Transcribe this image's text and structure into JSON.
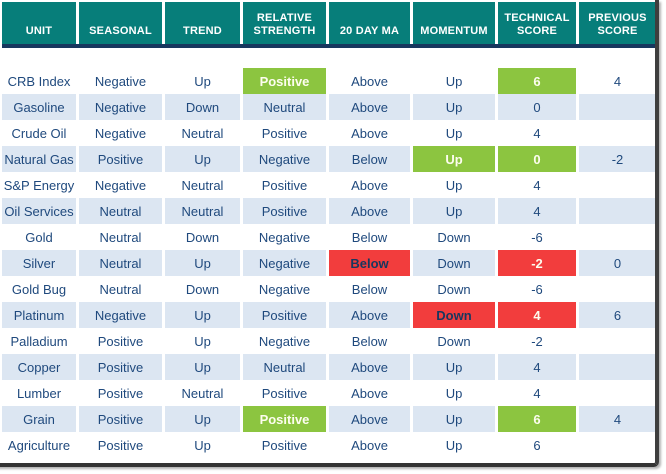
{
  "colors": {
    "header_bg": "#077E7A",
    "header_text": "#FFFFFF",
    "body_text": "#1F497D",
    "stripe_blue": "#DCE6F2",
    "highlight_green": "#8CC540",
    "highlight_red": "#F23D3D",
    "header_border_navy": "#17375E",
    "frame_gray": "#3E3E3E"
  },
  "table": {
    "columns": [
      {
        "key": "unit",
        "label": "UNIT"
      },
      {
        "key": "seasonal",
        "label": "SEASONAL"
      },
      {
        "key": "trend",
        "label": "TREND"
      },
      {
        "key": "relative_strength",
        "label": "RELATIVE STRENGTH"
      },
      {
        "key": "ma20",
        "label": "20 DAY MA"
      },
      {
        "key": "momentum",
        "label": "MOMENTUM"
      },
      {
        "key": "technical_score",
        "label": "TECHNICAL SCORE"
      },
      {
        "key": "previous_score",
        "label": "PREVIOUS SCORE"
      }
    ],
    "rows": [
      {
        "cells": [
          {
            "v": "CRB Index"
          },
          {
            "v": "Negative"
          },
          {
            "v": "Up"
          },
          {
            "v": "Positive",
            "hl": "green",
            "tone": "light"
          },
          {
            "v": "Above"
          },
          {
            "v": "Up"
          },
          {
            "v": "6",
            "hl": "green",
            "tone": "light"
          },
          {
            "v": "4"
          }
        ]
      },
      {
        "cells": [
          {
            "v": "Gasoline"
          },
          {
            "v": "Negative"
          },
          {
            "v": "Down"
          },
          {
            "v": "Neutral"
          },
          {
            "v": "Above"
          },
          {
            "v": "Up"
          },
          {
            "v": "0"
          },
          {
            "v": ""
          }
        ]
      },
      {
        "cells": [
          {
            "v": "Crude Oil"
          },
          {
            "v": "Negative"
          },
          {
            "v": "Neutral"
          },
          {
            "v": "Positive"
          },
          {
            "v": "Above"
          },
          {
            "v": "Up"
          },
          {
            "v": "4"
          },
          {
            "v": ""
          }
        ]
      },
      {
        "cells": [
          {
            "v": "Natural Gas"
          },
          {
            "v": "Positive"
          },
          {
            "v": "Up"
          },
          {
            "v": "Negative"
          },
          {
            "v": "Below"
          },
          {
            "v": "Up",
            "hl": "green",
            "tone": "light"
          },
          {
            "v": "0",
            "hl": "green",
            "tone": "light"
          },
          {
            "v": "-2"
          }
        ]
      },
      {
        "cells": [
          {
            "v": "S&P Energy"
          },
          {
            "v": "Negative"
          },
          {
            "v": "Neutral"
          },
          {
            "v": "Positive"
          },
          {
            "v": "Above"
          },
          {
            "v": "Up"
          },
          {
            "v": "4"
          },
          {
            "v": ""
          }
        ]
      },
      {
        "cells": [
          {
            "v": "Oil Services"
          },
          {
            "v": "Neutral"
          },
          {
            "v": "Neutral"
          },
          {
            "v": "Positive"
          },
          {
            "v": "Above"
          },
          {
            "v": "Up"
          },
          {
            "v": "4"
          },
          {
            "v": ""
          }
        ]
      },
      {
        "cells": [
          {
            "v": "Gold"
          },
          {
            "v": "Neutral"
          },
          {
            "v": "Down"
          },
          {
            "v": "Negative"
          },
          {
            "v": "Below"
          },
          {
            "v": "Down"
          },
          {
            "v": "-6"
          },
          {
            "v": ""
          }
        ]
      },
      {
        "cells": [
          {
            "v": "Silver"
          },
          {
            "v": "Neutral"
          },
          {
            "v": "Up"
          },
          {
            "v": "Negative"
          },
          {
            "v": "Below",
            "hl": "red",
            "tone": "dark"
          },
          {
            "v": "Down"
          },
          {
            "v": "-2",
            "hl": "red",
            "tone": "light"
          },
          {
            "v": "0"
          }
        ]
      },
      {
        "cells": [
          {
            "v": "Gold Bug"
          },
          {
            "v": "Neutral"
          },
          {
            "v": "Down"
          },
          {
            "v": "Negative"
          },
          {
            "v": "Below"
          },
          {
            "v": "Down"
          },
          {
            "v": "-6"
          },
          {
            "v": ""
          }
        ]
      },
      {
        "cells": [
          {
            "v": "Platinum"
          },
          {
            "v": "Negative"
          },
          {
            "v": "Up"
          },
          {
            "v": "Positive"
          },
          {
            "v": "Above"
          },
          {
            "v": "Down",
            "hl": "red",
            "tone": "dark"
          },
          {
            "v": "4",
            "hl": "red",
            "tone": "light"
          },
          {
            "v": "6"
          }
        ]
      },
      {
        "cells": [
          {
            "v": "Palladium"
          },
          {
            "v": "Positive"
          },
          {
            "v": "Up"
          },
          {
            "v": "Negative"
          },
          {
            "v": "Below"
          },
          {
            "v": "Down"
          },
          {
            "v": "-2"
          },
          {
            "v": ""
          }
        ]
      },
      {
        "cells": [
          {
            "v": "Copper"
          },
          {
            "v": "Positive"
          },
          {
            "v": "Up"
          },
          {
            "v": "Neutral"
          },
          {
            "v": "Above"
          },
          {
            "v": "Up"
          },
          {
            "v": "4"
          },
          {
            "v": ""
          }
        ]
      },
      {
        "cells": [
          {
            "v": "Lumber"
          },
          {
            "v": "Positive"
          },
          {
            "v": "Neutral"
          },
          {
            "v": "Positive"
          },
          {
            "v": "Above"
          },
          {
            "v": "Up"
          },
          {
            "v": "4"
          },
          {
            "v": ""
          }
        ]
      },
      {
        "cells": [
          {
            "v": "Grain"
          },
          {
            "v": "Positive"
          },
          {
            "v": "Up"
          },
          {
            "v": "Positive",
            "hl": "green",
            "tone": "light"
          },
          {
            "v": "Above"
          },
          {
            "v": "Up"
          },
          {
            "v": "6",
            "hl": "green",
            "tone": "light"
          },
          {
            "v": "4"
          }
        ]
      },
      {
        "cells": [
          {
            "v": "Agriculture"
          },
          {
            "v": "Positive"
          },
          {
            "v": "Up"
          },
          {
            "v": "Positive"
          },
          {
            "v": "Above"
          },
          {
            "v": "Up"
          },
          {
            "v": "6"
          },
          {
            "v": ""
          }
        ]
      }
    ]
  }
}
